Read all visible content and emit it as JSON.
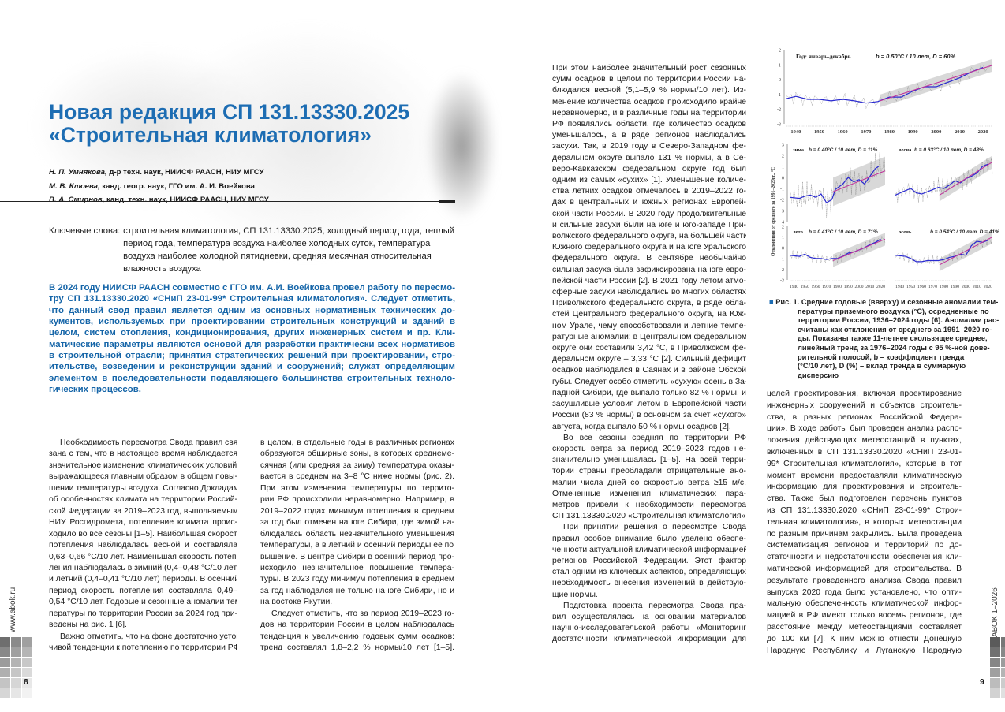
{
  "colors": {
    "accent": "#1d6db3",
    "lead_text": "#1565a8",
    "trend": "#c0309a",
    "smooth": "#2a2ad0",
    "band": "#c8c8c8"
  },
  "article": {
    "title_line1": "Новая редакция СП 131.13330.2025",
    "title_line2": "«Строительная климатология»",
    "authors": [
      {
        "name": "Н. П. Умнякова,",
        "credentials": " д-р техн. наук, НИИСФ РААСН, НИУ МГСУ"
      },
      {
        "name": "М. В. Клюева,",
        "credentials": " канд. геогр. наук, ГГО им. А. И. Воейкова"
      },
      {
        "name": "В. А. Смирнов,",
        "credentials": " канд. техн. наук, НИИСФ РААСН, НИУ МГСУ"
      }
    ],
    "keywords_label": "Ключевые слова:",
    "keywords": "строительная климатология, СП 131.13330.2025, холодный период года, теплый период года, температура воздуха наиболее холодных суток, температура воздуха наиболее холодной пятидневки, средняя месячная относительная влажность воздуха",
    "lead": [
      "В 2024 году НИИСФ РААСН совместно с ГГО им. А.И. Воейкова провел работу по пересмо-",
      "тру СП 131.13330.2020 «СНиП 23-01-99* Строительная климатология». Следует отметить,",
      "что данный свод правил является одним из основных нормативных технических до-",
      "кументов, используемых при проектировании строительных конструкций и зданий в",
      "целом, систем отопления, кондиционирования, других инженерных систем и пр. Кли-",
      "матические параметры являются основой для разработки практически всех нормативов",
      "в строительной отрасли; принятия стратегических решений при проектировании, стро-",
      "ительстве, возведении и реконструкции зданий и сооружений; служат определяющим",
      "элементом в последовательности подавляющего большинства строительных техноло-",
      "гических процессов."
    ]
  },
  "columns": {
    "left1": [
      [
        "Необходимость пересмотра Свода правил свя-",
        "зана с тем, что в настоящее время наблюдается",
        "значительное изменение климатических условий,",
        "выражающееся главным образом в общем повы-",
        "шении температуры воздуха. Согласно Докладам",
        "об особенностях климата на территории Россий-",
        "ской Федерации за 2019–2023 год, выполняемым",
        "НИУ Росгидромета, потепление климата проис-",
        "ходило во все сезоны [1–5]. Наибольшая скорость",
        "потепления наблюдалась весной и составляла",
        "0,63–0,66 °C/10 лет. Наименьшая скорость потеп-",
        "ления наблюдалась в зимний (0,4–0,48 °C/10 лет)",
        "и летний (0,4–0,41 °C/10 лет) периоды. В осенний",
        "период скорость потепления составляла 0,49–",
        "0,54 °C/10 лет. Годовые и сезонные аномалии тем-",
        "пературы по территории России за 2024 год при-",
        "ведены на рис. 1 [6]."
      ],
      [
        "Важно отметить, что на фоне достаточно устой-",
        "чивой тенденции к потеплению по территории РФ"
      ]
    ],
    "left2": [
      [
        "в целом, в отдельные годы в различных регионах",
        "образуются обширные зоны, в которых среднеме-",
        "сячная (или средняя за зиму) температура оказы-",
        "вается в среднем на 3–8 °C ниже нормы (рис. 2).",
        "При этом изменения температуры по террито-",
        "рии РФ происходили неравномерно. Например, в",
        "2019–2022 годах минимум потепления в среднем",
        "за год был отмечен на юге Сибири, где зимой на-",
        "блюдалась область незначительного уменьшения",
        "температуры, а в летний и осенний периоды ее по-",
        "вышение. В центре Сибири в осенний период про-",
        "исходило незначительное повышение темпера-",
        "туры. В 2023 году минимум потепления в среднем",
        "за год наблюдался не только на юге Сибири, но и",
        "на востоке Якутии."
      ],
      [
        "Следует отметить, что за период 2019–2023 го-",
        "дов на территории России в целом наблюдалась",
        "тенденция к увеличению годовых сумм осадков:",
        "тренд составлял 1,8–2,2 % нормы/10 лет [1–5]."
      ]
    ],
    "right1": [
      [
        "При этом наиболее значительный рост сезонных",
        "сумм осадков в целом по территории России на-",
        "блюдался весной (5,1–5,9 % нормы/10 лет). Из-",
        "менение количества осадков происходило крайне",
        "неравномерно, и в различные годы на территории",
        "РФ появлялись области, где количество осадков",
        "уменьшалось, а в ряде регионов наблюдались",
        "засухи. Так, в 2019 году в Северо-Западном фе-",
        "деральном округе выпало 131 % нормы, а в Се-",
        "веро-Кавказском федеральном округе год был",
        "одним из самых «сухих» [1]. Уменьшение количе-",
        "ства летних осадков отмечалось в 2019–2022 го-",
        "дах в центральных и южных регионах Европей-",
        "ской части России. В 2020 году продолжительные",
        "и сильные засухи были на юге и юго-западе При-",
        "волжского федерального округа, на большей части",
        "Южного федерального округа и на юге Уральского",
        "федерального округа. В сентябре необычайно",
        "сильная засуха была зафиксирована на юге евро-",
        "пейской части России [2]. В 2021 году летом атмо-",
        "сферные засухи наблюдались во многих областях",
        "Приволжского федерального округа, в ряде обла-",
        "стей Центрального федерального округа, на Юж-",
        "ном Урале, чему способствовали и летние темпе-",
        "ратурные аномалии: в Центральном федеральном",
        "округе они составили 3,42 °C, в Приволжском фе-",
        "деральном округе – 3,33 °C [2]. Сильный дефицит",
        "осадков наблюдался в Саянах и в районе Обской",
        "губы. Следует особо отметить «сухую» осень в За-",
        "падной Сибири, где выпало только 82 % нормы, и",
        "засушливые условия летом в Европейской части",
        "России (83 % нормы) в основном за счет «сухого»",
        "августа, когда выпало 50 % нормы осадков [2]."
      ],
      [
        "Во все сезоны средняя по территории РФ",
        "скорость ветра за период 2019–2023 годов не-",
        "значительно уменьшалась [1–5]. На всей терри-",
        "тории страны преобладали отрицательные ано-",
        "малии числа дней со скоростью ветра ≥15 м/с.",
        "Отмеченные изменения климатических пара-",
        "метров привели к необходимости пересмотра",
        "СП 131.13330.2020 «Строительная климатология»."
      ],
      [
        "При принятии решения о пересмотре Свода",
        "правил особое внимание было уделено обеспе-",
        "ченности актуальной климатической информацией",
        "регионов Российской Федерации. Этот фактор",
        "стал одним из ключевых аспектов, определяющих",
        "необходимость внесения изменений в действую-",
        "щие нормы."
      ],
      [
        "Подготовка проекта пересмотра Свода пра-",
        "вил осуществлялась на основании материалов",
        "научно-исследовательской работы «Мониторинг",
        "достаточности климатической информации для"
      ]
    ],
    "right2": [
      [
        "целей проектирования, включая проектирование",
        "инженерных сооружений и объектов строитель-",
        "ства, в разных регионах Российской Федера-",
        "ции». В ходе работы был проведен анализ распо-",
        "ложения действующих метеостанций в пунктах,",
        "включенных в СП 131.13330.2020 «СНиП 23-01-",
        "99* Строительная климатология», которые в тот",
        "момент времени предоставляли климатическую",
        "информацию для проектирования и строитель-",
        "ства. Также был подготовлен перечень пунктов",
        "из СП 131.13330.2020 «СНиП 23-01-99* Строи-",
        "тельная климатология», в которых метеостанции",
        "по разным причинам закрылись. Была проведена",
        "систематизация регионов и территорий по до-",
        "статочности и недостаточности обеспечения кли-",
        "матической информацией для строительства. В",
        "результате проведенного анализа Свода правил",
        "выпуска 2020 года было установлено, что опти-",
        "мальную обеспеченность климатической инфор-",
        "мацией в РФ имеют только восемь регионов, где",
        "расстояние между метеостанциями составляет",
        "до 100 км [7]. К ним можно отнести Донецкую",
        "Народную Республику и Луганскую Народную"
      ]
    ]
  },
  "figure": {
    "caption_label": "Рис. 1.",
    "caption_lines": [
      "Средние годовые (вверху) и сезонные аномалии тем-",
      "пературы приземного воздуха (°C), осредненные по",
      "территории России, 1936–2024 годы [6]. Аномалии рас-",
      "считаны как отклонения от среднего за 1991–2020 го-",
      "ды. Показаны также 11-летнее скользящее среднее,",
      "линейный тренд за 1976–2024 годы с 95 %-ной дове-",
      "рительной полосой, b – коэффициент тренда",
      "(°C/10 лет), D (%) – вклад тренда в суммарную",
      "дисперсию"
    ]
  },
  "chart_data": {
    "type": "line",
    "ylabel": "Отклонения от среднего за 1991–2020гг., °C",
    "x_ticks": [
      1940,
      1950,
      1960,
      1970,
      1980,
      1990,
      2000,
      2010,
      2020
    ],
    "xlim": [
      1936,
      2024
    ],
    "panels": [
      {
        "label": "Год: январь-декабрь",
        "stats": "b = 0.50°C / 10 лет, D = 60%",
        "ylim": [
          -3,
          2
        ],
        "y_ticks": [
          2,
          1,
          0,
          -1,
          -2,
          -3
        ],
        "trend": {
          "years": [
            1976,
            2024
          ],
          "values": [
            -1.45,
            0.95
          ]
        },
        "smoothed": [
          [
            1936,
            -1.3
          ],
          [
            1940,
            -1.15
          ],
          [
            1945,
            -1.35
          ],
          [
            1950,
            -1.35
          ],
          [
            1955,
            -1.45
          ],
          [
            1960,
            -1.35
          ],
          [
            1965,
            -1.45
          ],
          [
            1970,
            -1.6
          ],
          [
            1975,
            -1.5
          ],
          [
            1980,
            -1.2
          ],
          [
            1985,
            -1.2
          ],
          [
            1990,
            -0.8
          ],
          [
            1995,
            -0.5
          ],
          [
            2000,
            -0.5
          ],
          [
            2005,
            -0.2
          ],
          [
            2010,
            0.1
          ],
          [
            2015,
            0.5
          ],
          [
            2020,
            0.8
          ]
        ]
      },
      {
        "label": "зима",
        "stats": "b = 0.40°C / 10 лет, D = 11%",
        "ylim": [
          -4,
          3
        ],
        "y_ticks": [
          3,
          2,
          1,
          0,
          -1,
          -2,
          -3,
          -4
        ],
        "trend": {
          "years": [
            1976,
            2024
          ],
          "values": [
            -1.3,
            0.6
          ]
        },
        "smoothed": [
          [
            1936,
            -1.8
          ],
          [
            1945,
            -1.9
          ],
          [
            1950,
            -1.7
          ],
          [
            1955,
            -1.6
          ],
          [
            1960,
            -1.8
          ],
          [
            1965,
            -1.5
          ],
          [
            1970,
            -2.3
          ],
          [
            1975,
            -2.0
          ],
          [
            1978,
            -1.1
          ],
          [
            1985,
            -0.6
          ],
          [
            1990,
            0.0
          ],
          [
            1995,
            -0.4
          ],
          [
            2000,
            -0.2
          ],
          [
            2005,
            -0.6
          ],
          [
            2010,
            0.1
          ],
          [
            2015,
            0.8
          ],
          [
            2018,
            1.0
          ]
        ]
      },
      {
        "label": "весна",
        "stats": "b = 0.63°C / 10 лет, D = 48%",
        "ylim": [
          -4,
          3
        ],
        "y_ticks": [],
        "trend": {
          "years": [
            1976,
            2024
          ],
          "values": [
            -1.6,
            1.4
          ]
        },
        "smoothed": [
          [
            1936,
            -1.6
          ],
          [
            1945,
            -1.2
          ],
          [
            1950,
            -1.0
          ],
          [
            1955,
            -1.4
          ],
          [
            1960,
            -1.5
          ],
          [
            1965,
            -1.3
          ],
          [
            1970,
            -1.1
          ],
          [
            1975,
            -0.9
          ],
          [
            1980,
            -1.0
          ],
          [
            1985,
            -0.7
          ],
          [
            1990,
            -0.3
          ],
          [
            1995,
            -0.5
          ],
          [
            2000,
            -0.1
          ],
          [
            2005,
            0.1
          ],
          [
            2010,
            0.4
          ],
          [
            2015,
            1.0
          ],
          [
            2020,
            1.2
          ]
        ]
      },
      {
        "label": "лето",
        "stats": "b = 0.41°C / 10 лет, D = 71%",
        "ylim": [
          -3,
          2
        ],
        "y_ticks": [
          2,
          1,
          0,
          -1,
          -2,
          -3
        ],
        "trend": {
          "years": [
            1976,
            2024
          ],
          "values": [
            -1.2,
            0.8
          ]
        },
        "smoothed": [
          [
            1936,
            -0.7
          ],
          [
            1945,
            -0.8
          ],
          [
            1950,
            -0.6
          ],
          [
            1955,
            -0.9
          ],
          [
            1960,
            -1.0
          ],
          [
            1965,
            -1.0
          ],
          [
            1970,
            -1.1
          ],
          [
            1975,
            -1.0
          ],
          [
            1980,
            -1.0
          ],
          [
            1985,
            -0.8
          ],
          [
            1990,
            -0.5
          ],
          [
            1995,
            -0.4
          ],
          [
            2000,
            -0.2
          ],
          [
            2005,
            0.0
          ],
          [
            2010,
            0.3
          ],
          [
            2015,
            0.5
          ],
          [
            2020,
            0.8
          ]
        ]
      },
      {
        "label": "осень",
        "stats": "b = 0.54°C / 10 лет, D = 41%",
        "ylim": [
          -3,
          2
        ],
        "y_ticks": [],
        "trend": {
          "years": [
            1976,
            2024
          ],
          "values": [
            -1.6,
            1.0
          ]
        },
        "smoothed": [
          [
            1936,
            -0.7
          ],
          [
            1945,
            -0.8
          ],
          [
            1950,
            -1.0
          ],
          [
            1955,
            -1.3
          ],
          [
            1960,
            -1.3
          ],
          [
            1965,
            -1.2
          ],
          [
            1970,
            -1.2
          ],
          [
            1975,
            -1.2
          ],
          [
            1980,
            -1.1
          ],
          [
            1985,
            -0.9
          ],
          [
            1990,
            -0.8
          ],
          [
            1995,
            -0.6
          ],
          [
            2000,
            -0.7
          ],
          [
            2005,
            0.2
          ],
          [
            2010,
            0.6
          ],
          [
            2015,
            0.5
          ],
          [
            2020,
            0.7
          ]
        ]
      }
    ]
  },
  "footer": {
    "left_site": "www.abok.ru",
    "left_page": "8",
    "right_page": "9",
    "right_issue": "АВОК 1–2026"
  }
}
